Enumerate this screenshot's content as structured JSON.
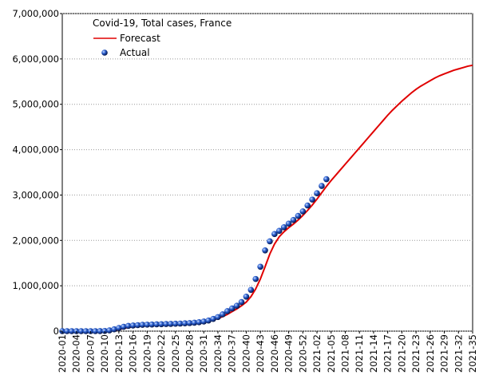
{
  "chart_data": {
    "type": "line",
    "title": "Covid-19, Total cases, France",
    "categories": [
      "2020-01",
      null,
      null,
      "2020-04",
      null,
      null,
      "2020-07",
      null,
      null,
      "2020-10",
      null,
      null,
      "2020-13",
      null,
      null,
      "2020-16",
      null,
      null,
      "2020-19",
      null,
      null,
      "2020-22",
      null,
      null,
      "2020-25",
      null,
      null,
      "2020-28",
      null,
      null,
      "2020-31",
      null,
      null,
      "2020-34",
      null,
      null,
      "2020-37",
      null,
      null,
      "2020-40",
      null,
      null,
      "2020-43",
      null,
      null,
      "2020-46",
      null,
      null,
      "2020-49",
      null,
      null,
      "2020-52",
      null,
      null,
      "2021-02",
      null,
      null,
      "2021-05",
      null,
      null,
      "2021-08",
      null,
      null,
      "2021-11",
      null,
      null,
      "2021-14",
      null,
      null,
      "2021-17",
      null,
      null,
      "2021-20",
      null,
      null,
      "2021-23",
      null,
      null,
      "2021-26",
      null,
      null,
      "2021-29",
      null,
      null,
      "2021-32",
      null,
      null,
      "2021-35"
    ],
    "series": [
      {
        "name": "Forecast",
        "kind": "line",
        "color": "#e00000",
        "values": [
          0,
          0,
          0,
          0,
          0,
          0,
          0,
          0,
          0,
          1000,
          4000,
          15000,
          35000,
          60000,
          80000,
          95000,
          105000,
          115000,
          120000,
          125000,
          130000,
          135000,
          140000,
          145000,
          150000,
          155000,
          160000,
          168000,
          178000,
          190000,
          205000,
          225000,
          250000,
          280000,
          320000,
          370000,
          430000,
          490000,
          560000,
          640000,
          760000,
          930000,
          1150000,
          1420000,
          1700000,
          1920000,
          2080000,
          2190000,
          2280000,
          2360000,
          2450000,
          2550000,
          2660000,
          2780000,
          2910000,
          3050000,
          3190000,
          3320000,
          3440000,
          3560000,
          3680000,
          3800000,
          3920000,
          4040000,
          4160000,
          4280000,
          4400000,
          4520000,
          4640000,
          4760000,
          4870000,
          4970000,
          5070000,
          5160000,
          5250000,
          5330000,
          5400000,
          5460000,
          5520000,
          5580000,
          5630000,
          5670000,
          5710000,
          5750000,
          5780000,
          5810000,
          5840000,
          5860000
        ]
      },
      {
        "name": "Actual",
        "kind": "points",
        "color": "#2a5fd0",
        "values": [
          0,
          0,
          0,
          0,
          0,
          0,
          0,
          100,
          1100,
          4500,
          16000,
          40000,
          70000,
          95000,
          115000,
          125000,
          132000,
          140000,
          143000,
          146000,
          150000,
          153000,
          157000,
          160000,
          163000,
          167000,
          172000,
          178000,
          186000,
          197000,
          212000,
          235000,
          270000,
          310000,
          370000,
          440000,
          500000,
          560000,
          640000,
          760000,
          910000,
          1150000,
          1420000,
          1780000,
          1980000,
          2140000,
          2210000,
          2290000,
          2370000,
          2450000,
          2540000,
          2640000,
          2770000,
          2900000,
          3040000,
          3200000,
          3350000,
          null,
          null,
          null,
          null,
          null,
          null,
          null,
          null,
          null,
          null,
          null,
          null,
          null,
          null,
          null,
          null,
          null,
          null,
          null,
          null,
          null,
          null,
          null,
          null,
          null,
          null,
          null,
          null,
          null,
          null,
          null
        ]
      }
    ],
    "ylim": [
      0,
      7000000
    ],
    "yticks": [
      0,
      {
        "value": 1000000,
        "label": "1,000,000"
      },
      {
        "value": 2000000,
        "label": "2,000,000"
      },
      {
        "value": 3000000,
        "label": "3,000,000"
      },
      {
        "value": 4000000,
        "label": "4,000,000"
      },
      {
        "value": 5000000,
        "label": "5,000,000"
      },
      {
        "value": 6000000,
        "label": "6,000,000"
      },
      {
        "value": 7000000,
        "label": "7,000,000"
      }
    ],
    "grid": true
  }
}
